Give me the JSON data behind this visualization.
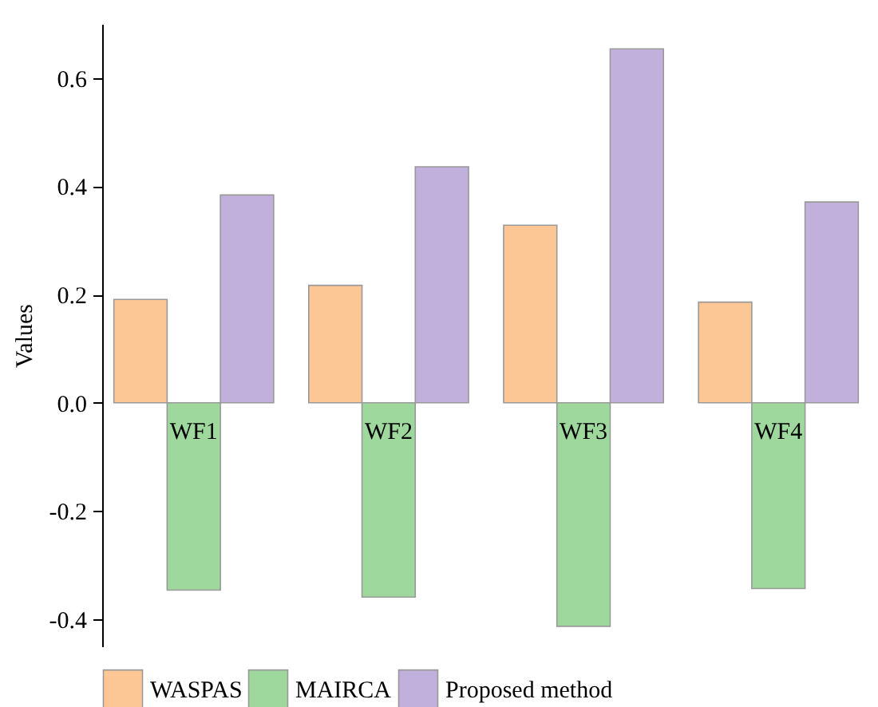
{
  "chart_data": {
    "type": "bar",
    "ylabel": "Values",
    "categories": [
      "WF1",
      "WF2",
      "WF3",
      "WF4"
    ],
    "series": [
      {
        "name": "WASPAS",
        "color": "#fdc795",
        "values": [
          0.191,
          0.217,
          0.328,
          0.186
        ]
      },
      {
        "name": "MAIRCA",
        "color": "#9ed89c",
        "values": [
          -0.346,
          -0.359,
          -0.413,
          -0.343
        ]
      },
      {
        "name": "Proposed method",
        "color": "#c2b0dc",
        "values": [
          0.384,
          0.436,
          0.654,
          0.371
        ]
      }
    ],
    "ylim": [
      -0.45,
      0.7
    ],
    "yticks": [
      {
        "value": -0.4,
        "label": "-0.4"
      },
      {
        "value": -0.2,
        "label": "-0.2"
      },
      {
        "value": 0,
        "label": "0.0"
      },
      {
        "value": 0.2,
        "label": "0.2"
      },
      {
        "value": 0.4,
        "label": "0.4"
      },
      {
        "value": 0.6,
        "label": "0.6"
      }
    ],
    "legend": "bottom"
  }
}
